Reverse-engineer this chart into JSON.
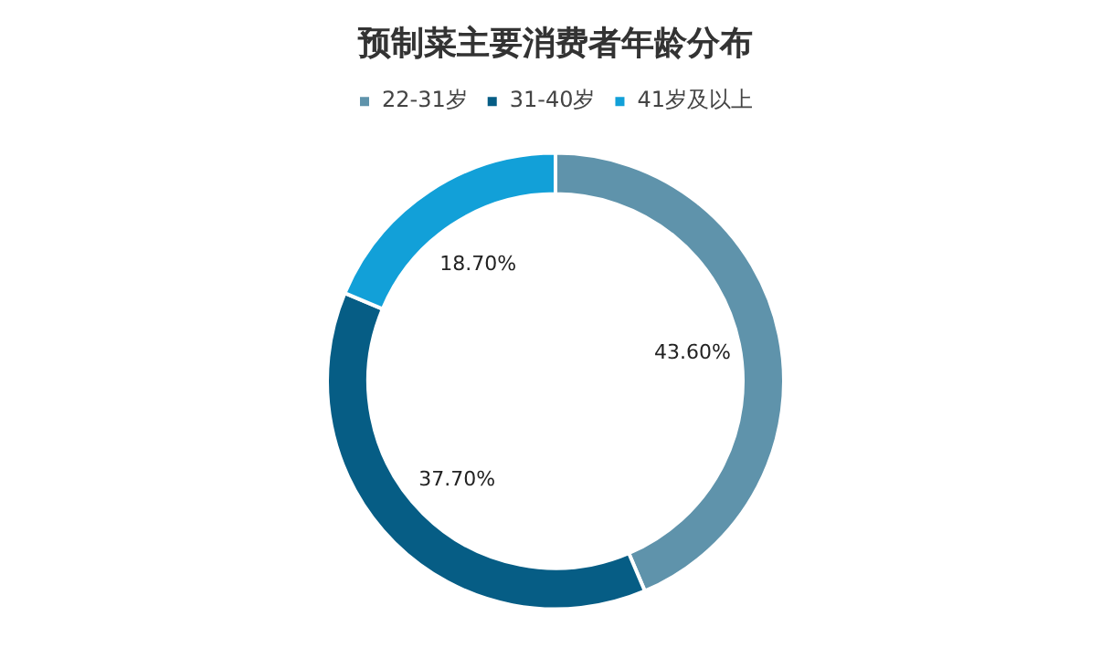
{
  "chart_data": {
    "type": "donut",
    "title": "预制菜主要消费者年龄分布",
    "categories": [
      "22-31岁",
      "31-40岁",
      "41岁及以上"
    ],
    "values": [
      43.6,
      37.7,
      18.7
    ],
    "colors": [
      "#5f93ab",
      "#065d85",
      "#12a0d8"
    ],
    "value_labels": [
      "43.60%",
      "37.70%",
      "18.70%"
    ],
    "legend": "top"
  }
}
